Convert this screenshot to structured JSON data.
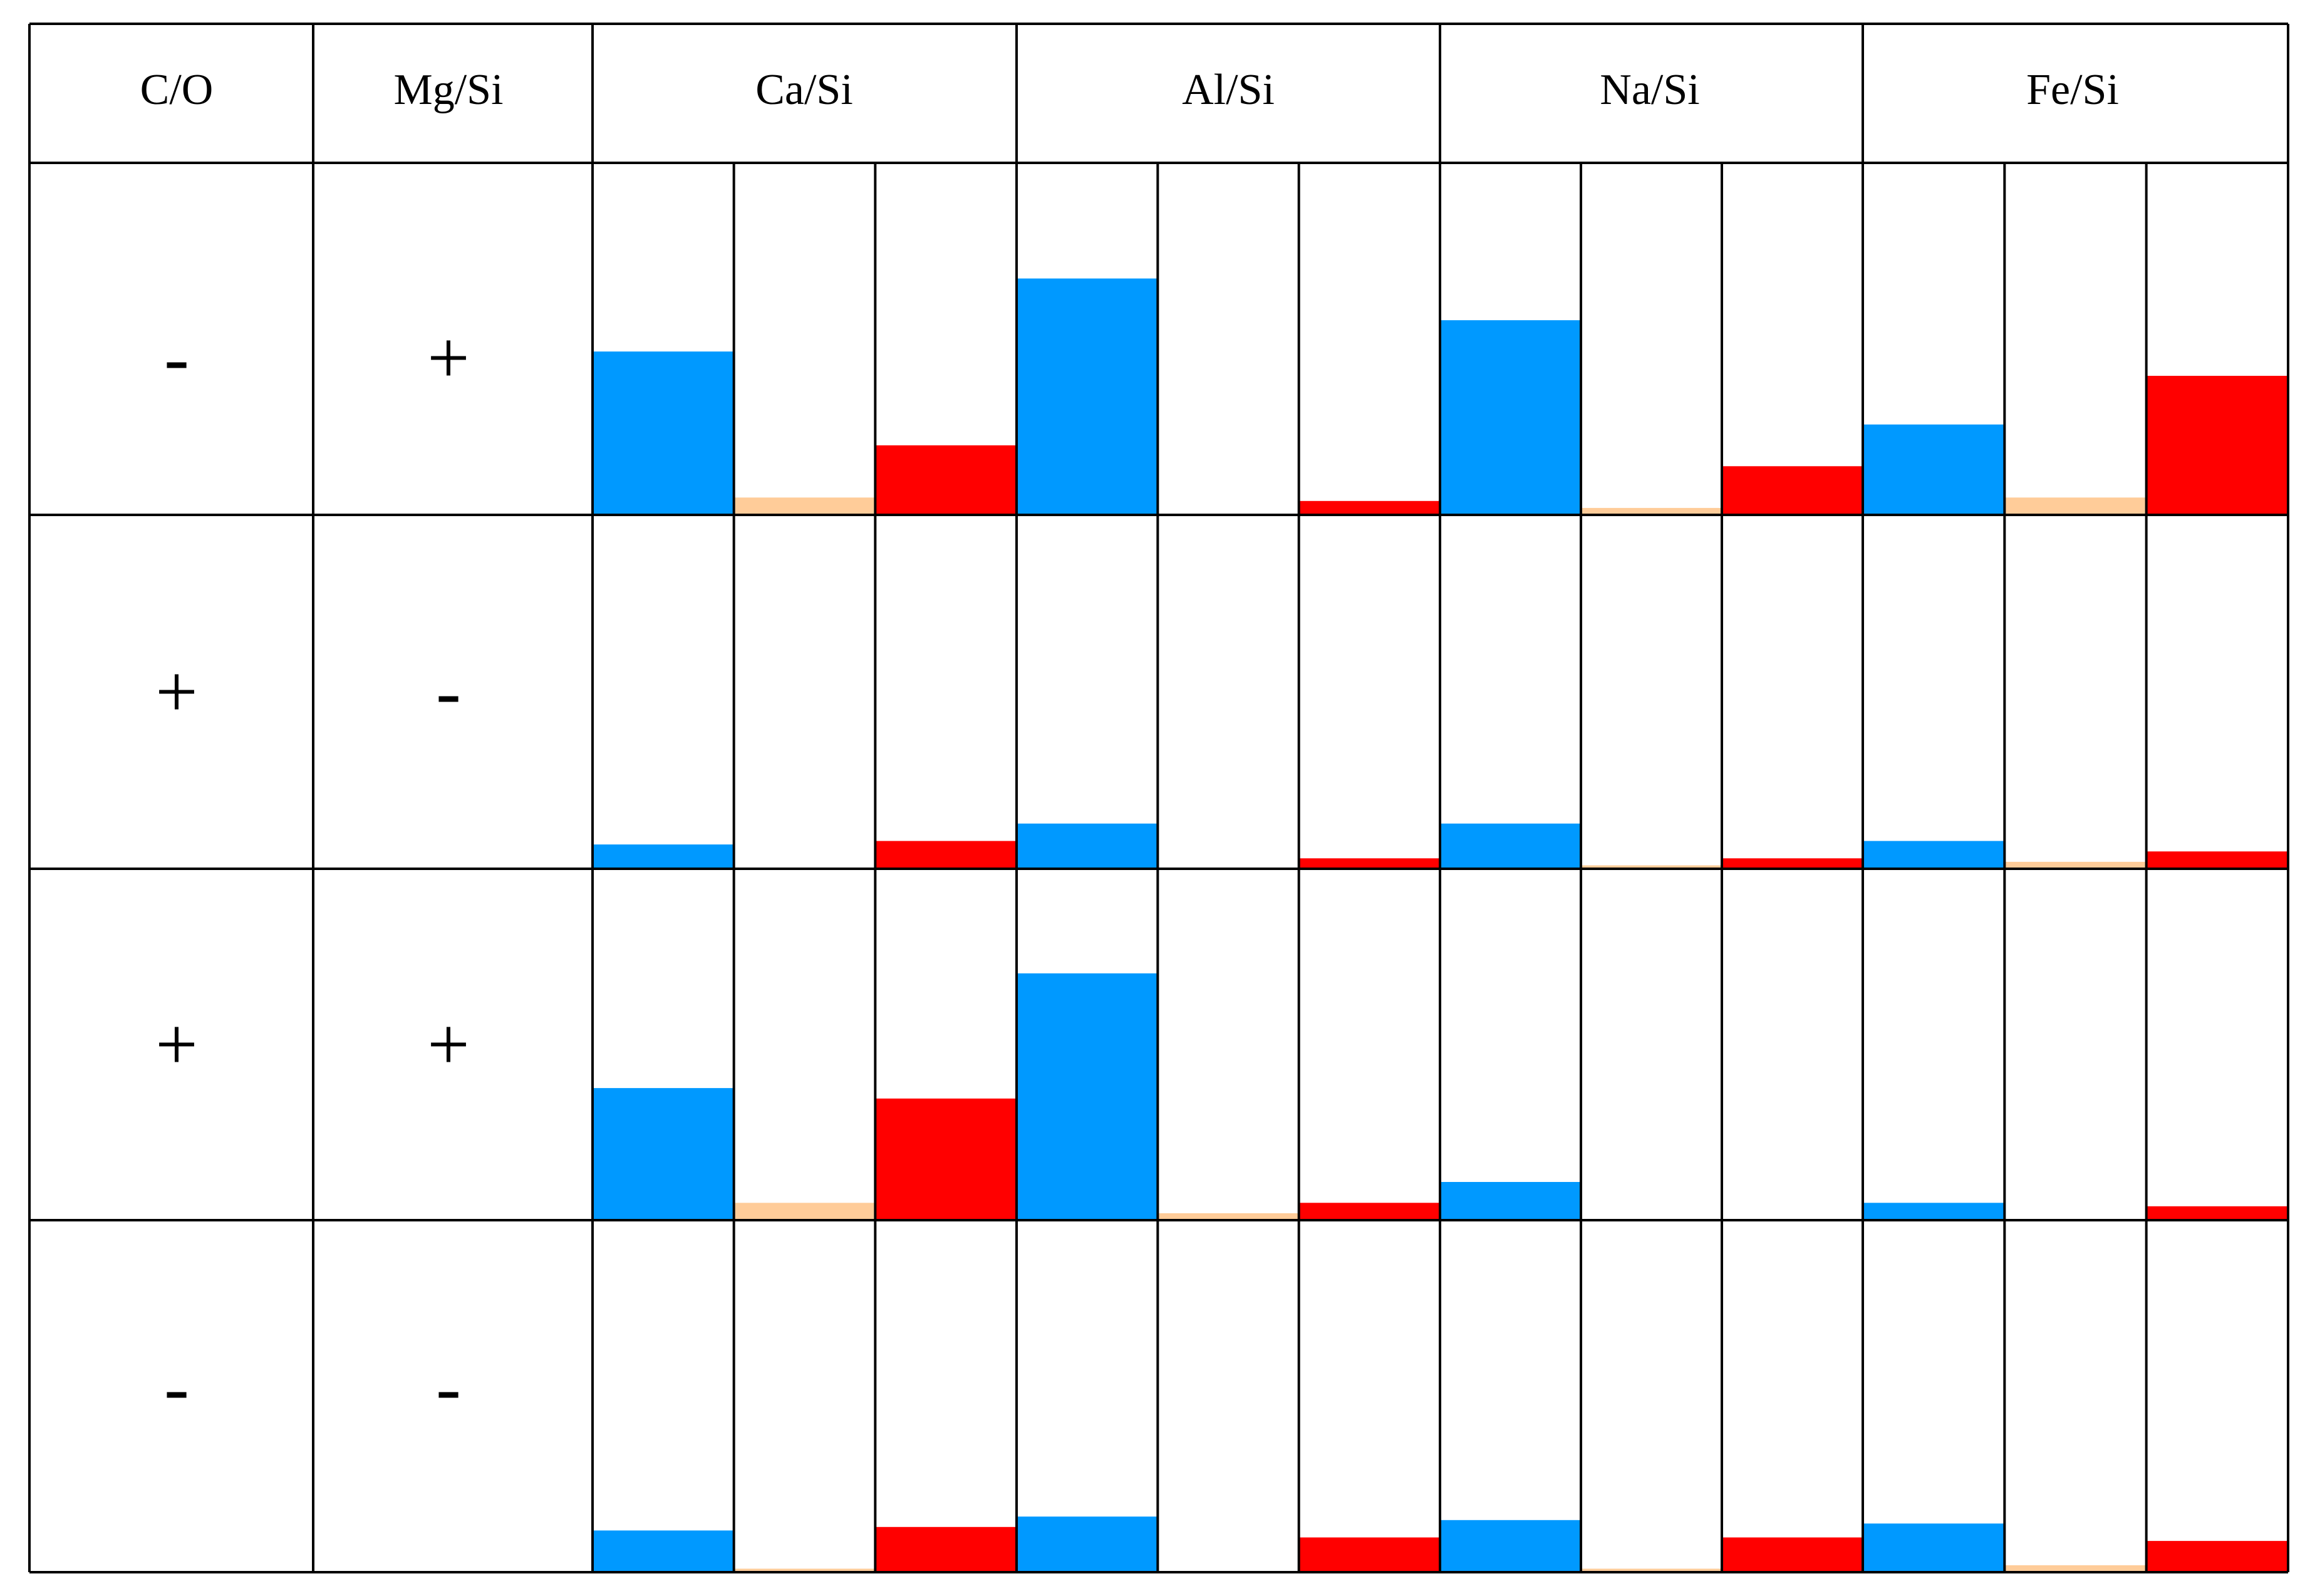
{
  "chart_data": {
    "type": "bar",
    "title": "",
    "header": {
      "c_o": "C/O",
      "mg_si": "Mg/Si",
      "groups": [
        "Ca/Si",
        "Al/Si",
        "Na/Si",
        "Fe/Si"
      ]
    },
    "rows": [
      {
        "c_o": "-",
        "mg_si": "+"
      },
      {
        "c_o": "+",
        "mg_si": "-"
      },
      {
        "c_o": "+",
        "mg_si": "+"
      },
      {
        "c_o": "-",
        "mg_si": "-"
      }
    ],
    "series_colors": [
      "#0099ff",
      "#ffcc99",
      "#ff0000"
    ],
    "ylim": [
      0,
      1
    ],
    "values": [
      [
        [
          0.47,
          0.05,
          0.2
        ],
        [
          0.68,
          0.0,
          0.04
        ],
        [
          0.56,
          0.02,
          0.14
        ],
        [
          0.26,
          0.05,
          0.4
        ]
      ],
      [
        [
          0.07,
          0.0,
          0.08
        ],
        [
          0.13,
          0.0,
          0.03
        ],
        [
          0.13,
          0.01,
          0.03
        ],
        [
          0.08,
          0.02,
          0.05
        ]
      ],
      [
        [
          0.38,
          0.05,
          0.35
        ],
        [
          0.71,
          0.02,
          0.05
        ],
        [
          0.11,
          0.0,
          0.0
        ],
        [
          0.05,
          0.0,
          0.04
        ]
      ],
      [
        [
          0.12,
          0.01,
          0.13
        ],
        [
          0.16,
          0.0,
          0.1
        ],
        [
          0.15,
          0.01,
          0.1
        ],
        [
          0.14,
          0.02,
          0.09
        ]
      ]
    ]
  }
}
